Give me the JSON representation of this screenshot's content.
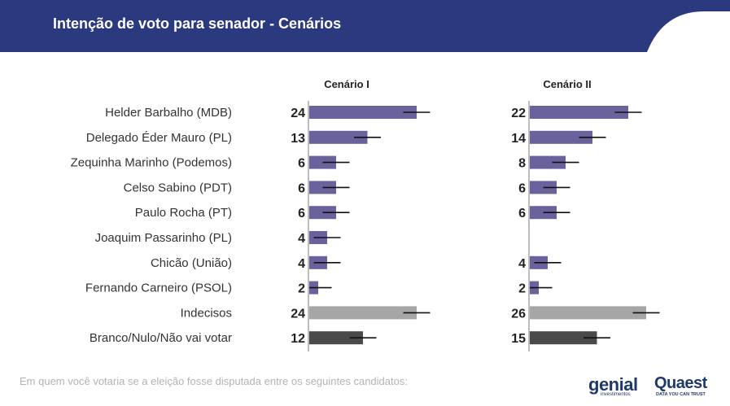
{
  "header": {
    "title": "Intenção de voto para senador - Cenários",
    "color": "#2b3a7e"
  },
  "chart_data": {
    "type": "bar",
    "orientation": "horizontal",
    "categories": [
      "Helder Barbalho (MDB)",
      "Delegado Éder Mauro (PL)",
      "Zequinha Marinho (Podemos)",
      "Celso Sabino (PDT)",
      "Paulo Rocha (PT)",
      "Joaquim Passarinho (PL)",
      "Chicão (União)",
      "Fernando Carneiro (PSOL)",
      "Indecisos",
      "Branco/Nulo/Não vai votar"
    ],
    "series": [
      {
        "name": "Cenário I",
        "values": [
          24,
          13,
          6,
          6,
          6,
          4,
          4,
          2,
          24,
          12
        ]
      },
      {
        "name": "Cenário II",
        "values": [
          22,
          14,
          8,
          6,
          6,
          null,
          4,
          2,
          26,
          15
        ]
      }
    ],
    "bar_colors": [
      "#6a629c",
      "#6a629c",
      "#6a629c",
      "#6a629c",
      "#6a629c",
      "#6a629c",
      "#6a629c",
      "#6a629c",
      "#a6a6a6",
      "#4a4a4a"
    ],
    "error_bar_color": "#111111",
    "xlim": [
      0,
      30
    ],
    "grid": false
  },
  "footnote": "Em quem você votaria se a eleição fosse disputada entre os seguintes candidatos:",
  "logos": {
    "genial": "genial",
    "genial_sub": "investimentos",
    "quaest": "Quaest",
    "quaest_sub": "DATA YOU CAN TRUST"
  }
}
